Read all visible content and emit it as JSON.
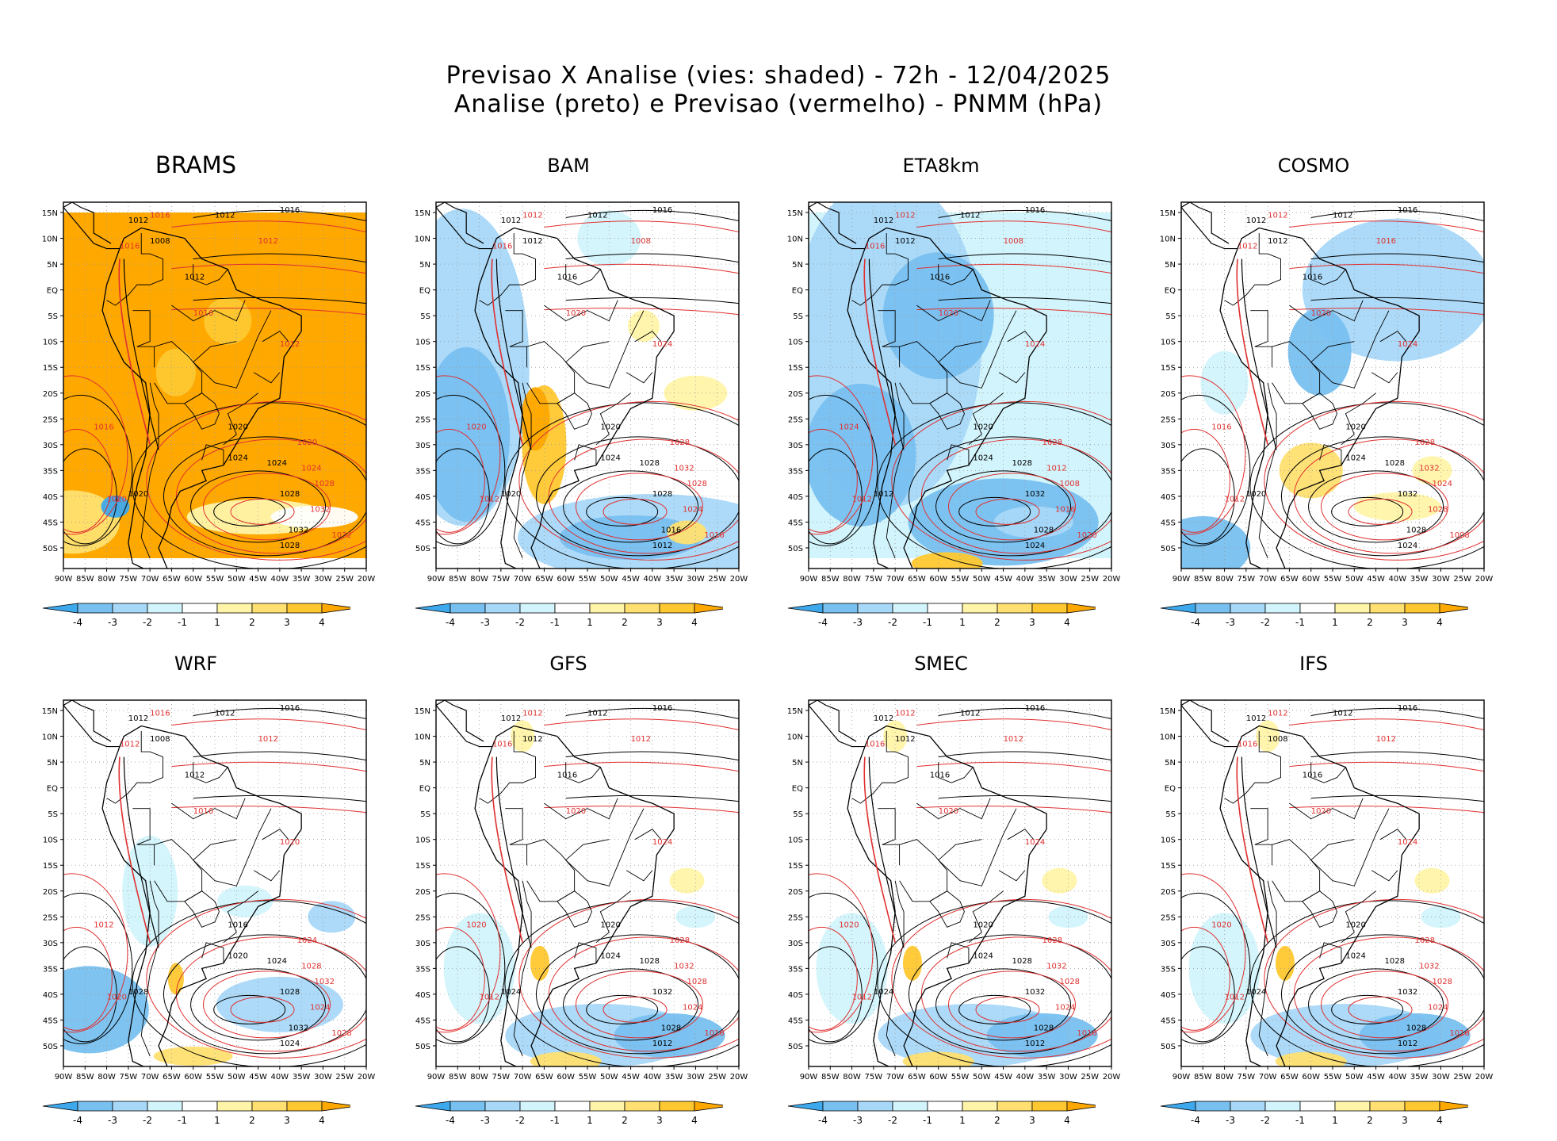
{
  "title": {
    "line1": "Previsao X Analise (vies: shaded) - 72h - 12/04/2025",
    "line2": "Analise (preto) e Previsao (vermelho) - PNMM (hPa)"
  },
  "axes": {
    "lat_labels": [
      "15N",
      "10N",
      "5N",
      "EQ",
      "5S",
      "10S",
      "15S",
      "20S",
      "25S",
      "30S",
      "35S",
      "40S",
      "45S",
      "50S"
    ],
    "lon_labels": [
      "90W",
      "85W",
      "80W",
      "75W",
      "70W",
      "65W",
      "60W",
      "55W",
      "50W",
      "45W",
      "40W",
      "35W",
      "30W",
      "25W",
      "20W"
    ]
  },
  "colorbar": {
    "labels": [
      "-4",
      "-3",
      "-2",
      "-1",
      "1",
      "2",
      "3",
      "4"
    ],
    "colors": [
      "#3ea8ec",
      "#78c0f0",
      "#a8d8f8",
      "#d2f4fc",
      "#ffffff",
      "#fff4a8",
      "#ffe070",
      "#ffc830",
      "#ffa800"
    ]
  },
  "isobar_colors": {
    "analysis": "#000000",
    "forecast": "#e03030"
  },
  "panels": [
    {
      "model": "BRAMS",
      "bias": "warm-all",
      "analysis_labels": [
        "1012",
        "1016",
        "1012",
        "1008",
        "1012",
        "1020",
        "1024",
        "1024",
        "1028",
        "1032",
        "1020",
        "1028"
      ],
      "forecast_labels": [
        "1016",
        "1012",
        "1016",
        "1016",
        "1012",
        "1020",
        "1024",
        "1028",
        "1032",
        "1032",
        "1016",
        "1020"
      ]
    },
    {
      "model": "BAM",
      "bias": "cold-pacific",
      "analysis_labels": [
        "1012",
        "1016",
        "1012",
        "1012",
        "1016",
        "1020",
        "1024",
        "1028",
        "1028",
        "1016",
        "1020",
        "1012"
      ],
      "forecast_labels": [
        "1012",
        "1008",
        "1016",
        "1020",
        "1024",
        "1028",
        "1032",
        "1028",
        "1024",
        "1016",
        "1020",
        "1012"
      ]
    },
    {
      "model": "ETA8km",
      "bias": "cold-all",
      "analysis_labels": [
        "1012",
        "1016",
        "1012",
        "1012",
        "1016",
        "1020",
        "1024",
        "1028",
        "1032",
        "1028",
        "1012",
        "1024"
      ],
      "forecast_labels": [
        "1012",
        "1008",
        "1016",
        "1020",
        "1024",
        "1028",
        "1012",
        "1008",
        "1016",
        "1020",
        "1024",
        "1012"
      ]
    },
    {
      "model": "COSMO",
      "bias": "cold-warm",
      "analysis_labels": [
        "1012",
        "1016",
        "1012",
        "1012",
        "1016",
        "1020",
        "1024",
        "1028",
        "1032",
        "1028",
        "1020",
        "1024"
      ],
      "forecast_labels": [
        "1012",
        "1016",
        "1012",
        "1020",
        "1024",
        "1028",
        "1032",
        "1024",
        "1028",
        "1008",
        "1016",
        "1012"
      ]
    },
    {
      "model": "WRF",
      "bias": "mixed",
      "analysis_labels": [
        "1012",
        "1016",
        "1012",
        "1008",
        "1012",
        "1016",
        "1020",
        "1024",
        "1028",
        "1032",
        "1028",
        "1024"
      ],
      "forecast_labels": [
        "1016",
        "1012",
        "1012",
        "1016",
        "1020",
        "1024",
        "1028",
        "1032",
        "1024",
        "1028",
        "1012",
        "1020"
      ]
    },
    {
      "model": "GFS",
      "bias": "weak",
      "analysis_labels": [
        "1012",
        "1016",
        "1012",
        "1012",
        "1016",
        "1020",
        "1024",
        "1028",
        "1032",
        "1028",
        "1024",
        "1012"
      ],
      "forecast_labels": [
        "1012",
        "1012",
        "1016",
        "1020",
        "1024",
        "1028",
        "1032",
        "1028",
        "1024",
        "1016",
        "1020",
        "1012"
      ]
    },
    {
      "model": "SMEC",
      "bias": "weak",
      "analysis_labels": [
        "1012",
        "1016",
        "1012",
        "1012",
        "1016",
        "1020",
        "1024",
        "1028",
        "1032",
        "1028",
        "1024",
        "1012"
      ],
      "forecast_labels": [
        "1012",
        "1012",
        "1016",
        "1020",
        "1024",
        "1028",
        "1032",
        "1028",
        "1024",
        "1016",
        "1020",
        "1012"
      ]
    },
    {
      "model": "IFS",
      "bias": "weak",
      "analysis_labels": [
        "1012",
        "1016",
        "1012",
        "1008",
        "1016",
        "1020",
        "1024",
        "1028",
        "1032",
        "1028",
        "1024",
        "1012"
      ],
      "forecast_labels": [
        "1012",
        "1012",
        "1016",
        "1020",
        "1024",
        "1028",
        "1032",
        "1028",
        "1024",
        "1016",
        "1020",
        "1012"
      ]
    }
  ]
}
